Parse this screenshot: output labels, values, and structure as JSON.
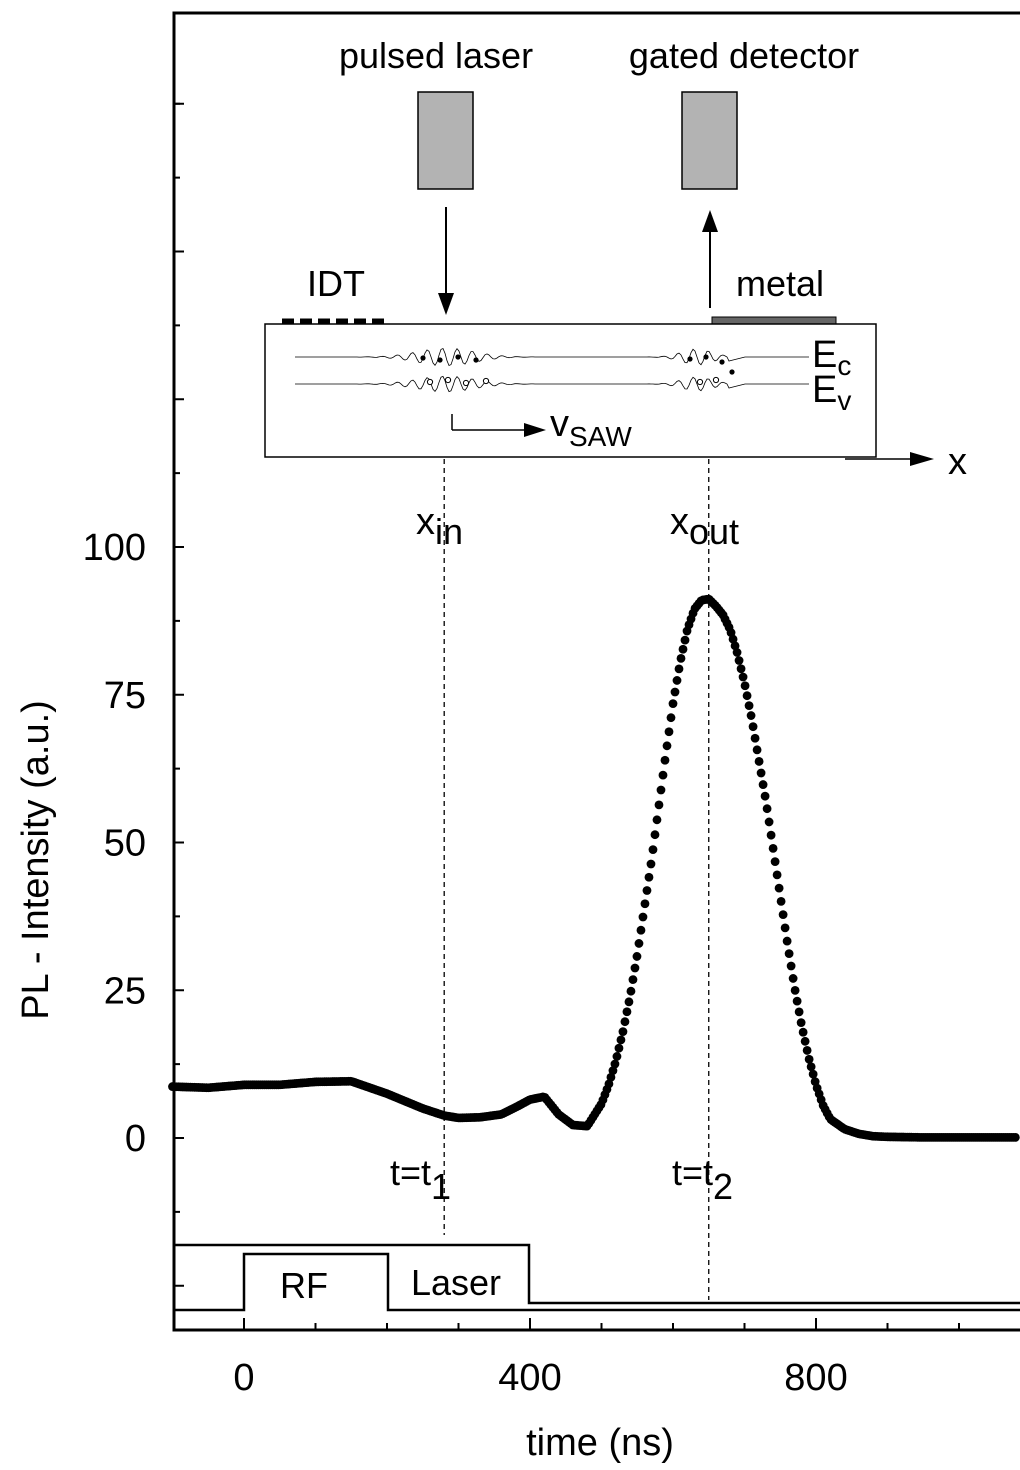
{
  "chart_data": {
    "type": "scatter",
    "xlabel": "time (ns)",
    "ylabel": "PL - Intensity (a.u.)",
    "xlim": [
      -100,
      1080
    ],
    "ylim": [
      -100,
      400
    ],
    "x_ticks": [
      0,
      400,
      800
    ],
    "y_ticks": [
      0,
      25,
      50,
      75,
      100
    ],
    "grid": false,
    "legend": "none",
    "marker_color": "#000000",
    "series": [
      {
        "x": [
          -100,
          -50,
          0,
          50,
          100,
          150,
          200,
          250,
          280,
          300,
          330,
          360,
          380,
          400,
          420,
          440,
          460,
          480,
          500,
          510,
          520,
          530,
          540,
          550,
          560,
          570,
          580,
          590,
          600,
          610,
          620,
          630,
          640,
          650,
          660,
          670,
          680,
          690,
          700,
          710,
          720,
          730,
          740,
          750,
          760,
          770,
          780,
          790,
          800,
          810,
          820,
          840,
          860,
          880,
          900,
          950,
          1000,
          1050,
          1080
        ],
        "values": [
          8.7,
          8.5,
          9.0,
          9.0,
          9.5,
          9.6,
          7.5,
          5.0,
          3.8,
          3.4,
          3.5,
          4.0,
          5.2,
          6.5,
          7.0,
          4.0,
          2.2,
          2.0,
          5.8,
          9.0,
          13.0,
          18.0,
          24.0,
          31.0,
          39.0,
          47.0,
          56.0,
          65.0,
          73.5,
          80.5,
          86.0,
          89.5,
          91.0,
          91.2,
          90.0,
          88.5,
          86.0,
          82.0,
          77.0,
          71.0,
          64.0,
          57.0,
          49.0,
          41.0,
          33.0,
          25.5,
          19.0,
          13.5,
          9.0,
          5.5,
          3.2,
          1.5,
          0.7,
          0.3,
          0.2,
          0.1,
          0.1,
          0.1,
          0.1
        ]
      }
    ],
    "annotations": {
      "laser_label": "pulsed laser",
      "detector_label": "gated detector",
      "idt_label": "IDT",
      "metal_label": "metal",
      "ec_main": "E",
      "ec_sub": "c",
      "ev_main": "E",
      "ev_sub": "v",
      "vsaw_main": "v",
      "vsaw_sub": "SAW",
      "x_axis_arrow_label": "x",
      "xin_main": "x",
      "xin_sub": "in",
      "xout_main": "x",
      "xout_sub": "out",
      "t1_main": "t=t",
      "t1_sub": "1",
      "t2_main": "t=t",
      "t2_sub": "2",
      "rf_label": "RF",
      "laser_pulse_label": "Laser",
      "t1_ns": 280,
      "t2_ns": 650
    }
  }
}
